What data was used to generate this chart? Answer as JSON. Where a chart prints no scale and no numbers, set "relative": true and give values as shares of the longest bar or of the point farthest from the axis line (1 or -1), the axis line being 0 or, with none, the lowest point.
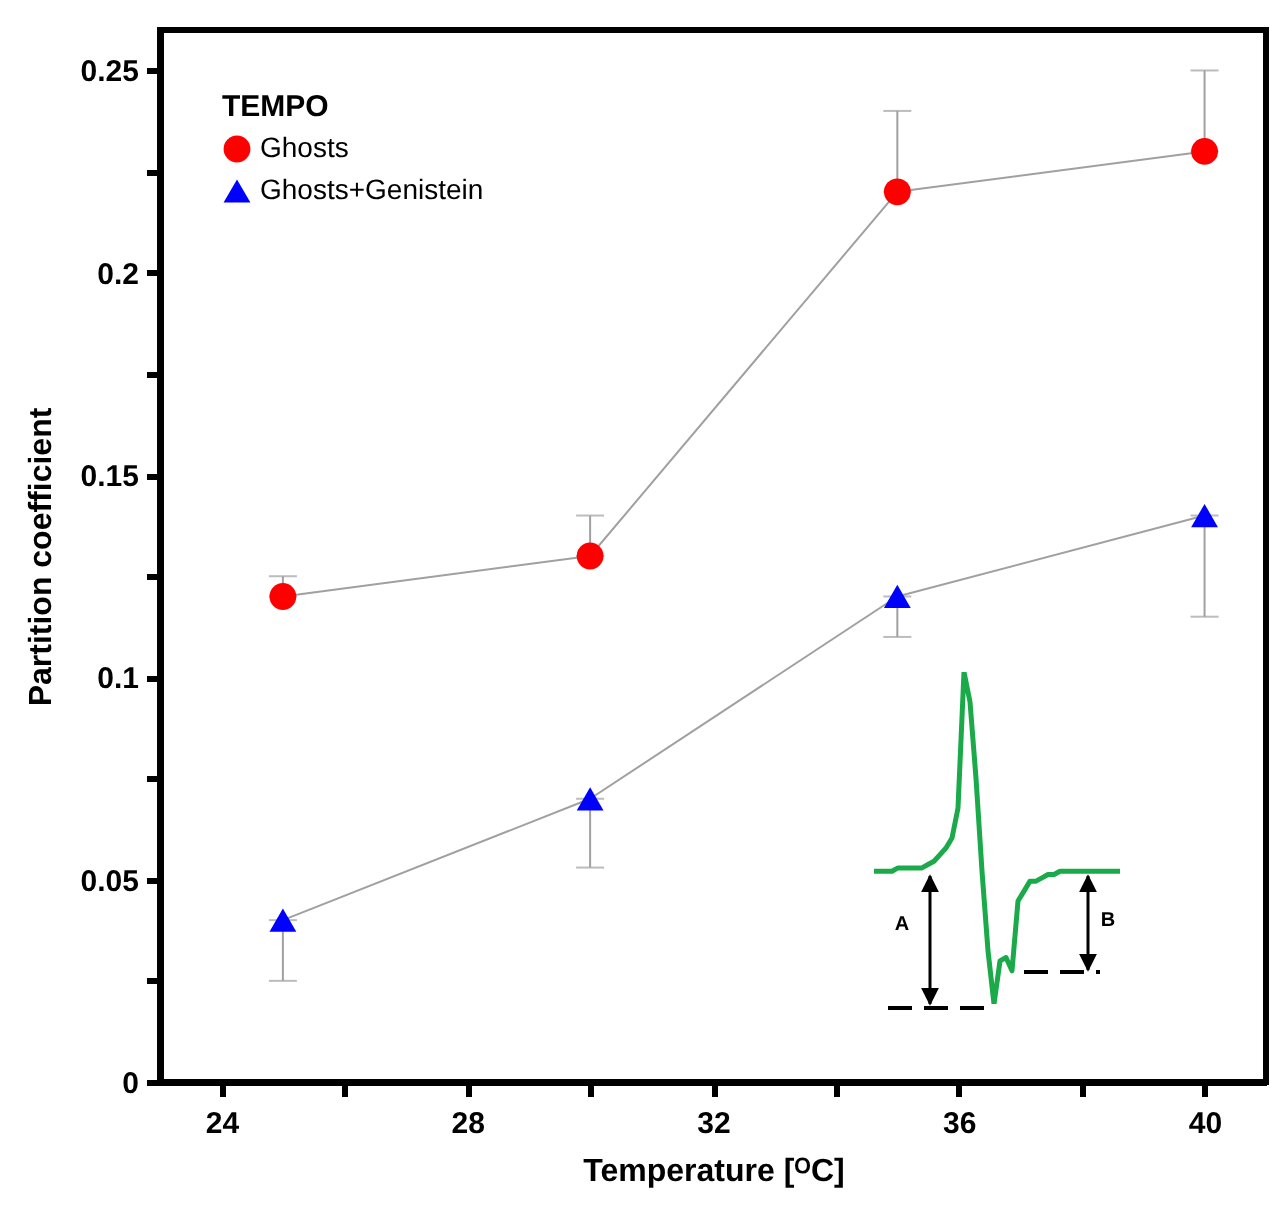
{
  "chart_data": [
    {
      "type": "line",
      "xlabel": "Temperature [ᴼC]",
      "ylabel": "Partition coefficient",
      "legend_title": "TEMPO",
      "x": [
        25,
        30,
        35,
        40
      ],
      "series": [
        {
          "name": "Ghosts",
          "color": "#ff0000",
          "marker": "circle",
          "values": [
            0.12,
            0.13,
            0.22,
            0.23
          ],
          "errors": [
            [
              0.12,
              0.125
            ],
            [
              0.13,
              0.14
            ],
            [
              0.22,
              0.24
            ],
            [
              0.23,
              0.25
            ]
          ]
        },
        {
          "name": "Ghosts+Genistein",
          "color": "#0000ff",
          "marker": "triangle",
          "values": [
            0.04,
            0.07,
            0.12,
            0.14
          ],
          "errors": [
            [
              0.025,
              0.04
            ],
            [
              0.053,
              0.07
            ],
            [
              0.11,
              0.12
            ],
            [
              0.115,
              0.14
            ]
          ]
        }
      ],
      "xlim": [
        23,
        41
      ],
      "xticks": [
        24,
        {
          "value": 26,
          "label": null
        },
        28,
        {
          "value": 30,
          "label": null
        },
        32,
        {
          "value": 34,
          "label": null
        },
        36,
        {
          "value": 38,
          "label": null
        },
        40
      ],
      "ylim": [
        0,
        0.26
      ],
      "yticks": [
        0,
        {
          "value": 0.025,
          "label": null
        },
        0.05,
        {
          "value": 0.075,
          "label": null
        },
        0.1,
        {
          "value": 0.125,
          "label": null
        },
        0.15,
        {
          "value": 0.175,
          "label": null
        },
        0.2,
        {
          "value": 0.225,
          "label": null
        },
        0.25
      ],
      "grid": false,
      "legend": "top left"
    },
    {
      "type": "line",
      "relative": true,
      "annotations": [
        "A",
        "B"
      ],
      "categories": [
        null,
        null,
        null,
        null,
        null,
        null,
        null,
        null,
        null,
        null,
        null,
        null,
        null,
        null,
        null,
        null,
        null,
        null,
        null,
        null,
        null,
        null,
        null,
        null,
        null,
        null,
        null,
        null,
        null,
        null,
        null,
        null,
        null,
        null,
        null,
        null,
        null,
        null,
        null,
        null,
        null,
        null
      ],
      "series": [
        {
          "color": "#1aaa4a",
          "values": [
            0.4,
            0.4,
            0.4,
            0.4,
            0.41,
            0.41,
            0.41,
            0.41,
            0.41,
            0.42,
            0.43,
            0.45,
            0.47,
            0.5,
            0.59,
            1,
            0.91,
            0.68,
            0.4,
            0.16,
            0,
            0.13,
            0.14,
            0.1,
            0.31,
            0.34,
            0.37,
            0.37,
            0.38,
            0.39,
            0.39,
            0.4,
            0.4,
            0.4,
            0.4,
            0.4,
            0.4,
            0.4,
            0.4,
            0.4,
            0.4,
            0.4
          ]
        }
      ]
    }
  ]
}
